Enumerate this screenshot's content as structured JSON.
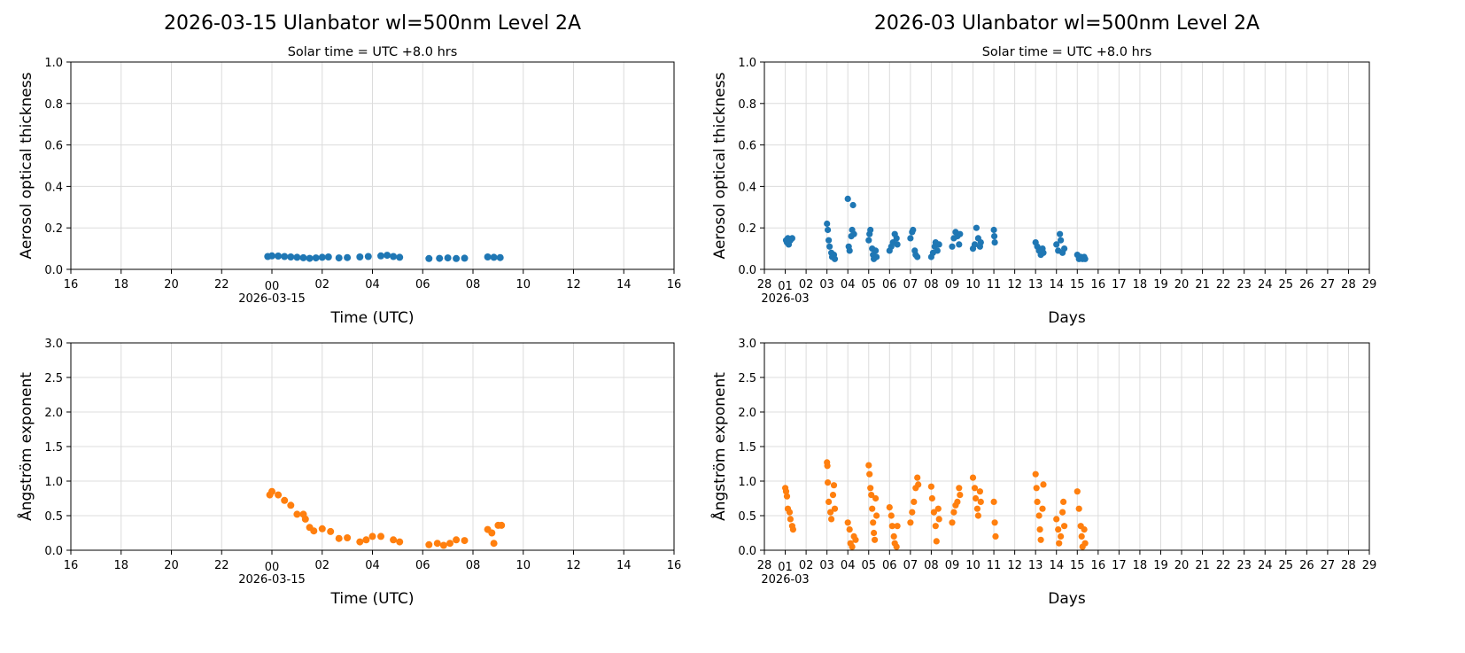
{
  "colors": {
    "aod": "#1f77b4",
    "angstrom": "#ff7f0e",
    "grid": "#dcdcdc"
  },
  "chart_data": [
    {
      "id": "daily-aod",
      "type": "scatter",
      "title": "2026-03-15  Ulanbator  wl=500nm  Level 2A",
      "subtitle": "Solar time = UTC +8.0 hrs",
      "xlabel": "Time (UTC)",
      "ylabel": "Aerosol optical thickness",
      "xlim": [
        "2026-03-14T16:00",
        "2026-03-15T16:00"
      ],
      "ylim": [
        0,
        1.0
      ],
      "xticks": [
        "16",
        "18",
        "20",
        "22",
        "00",
        "02",
        "04",
        "06",
        "08",
        "10",
        "12",
        "14",
        "16"
      ],
      "xtick_date": "2026-03-15",
      "yticks": [
        "0.0",
        "0.2",
        "0.4",
        "0.6",
        "0.8",
        "1.0"
      ],
      "grid": true,
      "color": "#1f77b4",
      "points": [
        [
          "2026-03-14T23:50",
          0.062
        ],
        [
          "2026-03-15T00:00",
          0.065
        ],
        [
          "2026-03-15T00:15",
          0.064
        ],
        [
          "2026-03-15T00:30",
          0.062
        ],
        [
          "2026-03-15T00:45",
          0.06
        ],
        [
          "2026-03-15T01:00",
          0.058
        ],
        [
          "2026-03-15T01:15",
          0.056
        ],
        [
          "2026-03-15T01:30",
          0.053
        ],
        [
          "2026-03-15T01:45",
          0.055
        ],
        [
          "2026-03-15T02:00",
          0.058
        ],
        [
          "2026-03-15T02:15",
          0.06
        ],
        [
          "2026-03-15T02:40",
          0.055
        ],
        [
          "2026-03-15T03:00",
          0.057
        ],
        [
          "2026-03-15T03:30",
          0.06
        ],
        [
          "2026-03-15T03:50",
          0.062
        ],
        [
          "2026-03-15T04:20",
          0.065
        ],
        [
          "2026-03-15T04:35",
          0.068
        ],
        [
          "2026-03-15T04:50",
          0.062
        ],
        [
          "2026-03-15T05:05",
          0.058
        ],
        [
          "2026-03-15T06:15",
          0.052
        ],
        [
          "2026-03-15T06:40",
          0.053
        ],
        [
          "2026-03-15T07:00",
          0.055
        ],
        [
          "2026-03-15T07:20",
          0.052
        ],
        [
          "2026-03-15T07:40",
          0.054
        ],
        [
          "2026-03-15T08:35",
          0.06
        ],
        [
          "2026-03-15T08:50",
          0.058
        ],
        [
          "2026-03-15T09:05",
          0.057
        ]
      ]
    },
    {
      "id": "monthly-aod",
      "type": "scatter",
      "title": "2026-03  Ulanbator  wl=500nm  Level 2A",
      "subtitle": "Solar time = UTC +8.0 hrs",
      "xlabel": "Days",
      "ylabel": "Aerosol optical thickness",
      "xlim": [
        "2026-02-28T00:00",
        "2026-03-29T00:00"
      ],
      "ylim": [
        0,
        1.0
      ],
      "xticks": [
        "28",
        "01",
        "02",
        "03",
        "04",
        "05",
        "06",
        "07",
        "08",
        "09",
        "10",
        "11",
        "12",
        "13",
        "14",
        "15",
        "16",
        "17",
        "18",
        "19",
        "20",
        "21",
        "22",
        "23",
        "24",
        "25",
        "26",
        "27",
        "28",
        "29"
      ],
      "xtick_date": "2026-03",
      "yticks": [
        "0.0",
        "0.2",
        "0.4",
        "0.6",
        "0.8",
        "1.0"
      ],
      "grid": true,
      "color": "#1f77b4",
      "points": [
        [
          "2026-03-01T01:00",
          0.14
        ],
        [
          "2026-03-01T02:00",
          0.13
        ],
        [
          "2026-03-01T03:00",
          0.15
        ],
        [
          "2026-03-01T04:00",
          0.12
        ],
        [
          "2026-03-01T06:00",
          0.14
        ],
        [
          "2026-03-01T08:00",
          0.15
        ],
        [
          "2026-03-03T00:00",
          0.22
        ],
        [
          "2026-03-03T01:00",
          0.19
        ],
        [
          "2026-03-03T02:00",
          0.14
        ],
        [
          "2026-03-03T03:00",
          0.11
        ],
        [
          "2026-03-03T05:00",
          0.08
        ],
        [
          "2026-03-03T06:00",
          0.06
        ],
        [
          "2026-03-03T08:00",
          0.07
        ],
        [
          "2026-03-03T09:00",
          0.05
        ],
        [
          "2026-03-04T00:00",
          0.34
        ],
        [
          "2026-03-04T01:00",
          0.11
        ],
        [
          "2026-03-04T02:00",
          0.09
        ],
        [
          "2026-03-04T04:00",
          0.16
        ],
        [
          "2026-03-04T05:00",
          0.19
        ],
        [
          "2026-03-04T06:00",
          0.31
        ],
        [
          "2026-03-04T07:00",
          0.17
        ],
        [
          "2026-03-05T00:00",
          0.14
        ],
        [
          "2026-03-05T01:00",
          0.17
        ],
        [
          "2026-03-05T02:00",
          0.19
        ],
        [
          "2026-03-05T04:00",
          0.1
        ],
        [
          "2026-03-05T05:00",
          0.07
        ],
        [
          "2026-03-05T06:00",
          0.05
        ],
        [
          "2026-03-05T08:00",
          0.09
        ],
        [
          "2026-03-05T09:00",
          0.06
        ],
        [
          "2026-03-06T00:00",
          0.09
        ],
        [
          "2026-03-06T02:00",
          0.11
        ],
        [
          "2026-03-06T04:00",
          0.13
        ],
        [
          "2026-03-06T06:00",
          0.17
        ],
        [
          "2026-03-06T08:00",
          0.15
        ],
        [
          "2026-03-06T09:00",
          0.12
        ],
        [
          "2026-03-07T00:00",
          0.15
        ],
        [
          "2026-03-07T02:00",
          0.18
        ],
        [
          "2026-03-07T03:00",
          0.19
        ],
        [
          "2026-03-07T05:00",
          0.09
        ],
        [
          "2026-03-07T06:00",
          0.07
        ],
        [
          "2026-03-07T08:00",
          0.06
        ],
        [
          "2026-03-08T00:00",
          0.06
        ],
        [
          "2026-03-08T02:00",
          0.08
        ],
        [
          "2026-03-08T04:00",
          0.11
        ],
        [
          "2026-03-08T05:00",
          0.13
        ],
        [
          "2026-03-08T07:00",
          0.09
        ],
        [
          "2026-03-08T09:00",
          0.12
        ],
        [
          "2026-03-09T00:00",
          0.11
        ],
        [
          "2026-03-09T02:00",
          0.15
        ],
        [
          "2026-03-09T04:00",
          0.18
        ],
        [
          "2026-03-09T06:00",
          0.16
        ],
        [
          "2026-03-09T08:00",
          0.12
        ],
        [
          "2026-03-09T09:00",
          0.17
        ],
        [
          "2026-03-10T00:00",
          0.1
        ],
        [
          "2026-03-10T02:00",
          0.12
        ],
        [
          "2026-03-10T04:00",
          0.2
        ],
        [
          "2026-03-10T06:00",
          0.15
        ],
        [
          "2026-03-10T08:00",
          0.11
        ],
        [
          "2026-03-10T09:00",
          0.13
        ],
        [
          "2026-03-11T00:00",
          0.19
        ],
        [
          "2026-03-11T00:30",
          0.16
        ],
        [
          "2026-03-11T01:00",
          0.13
        ],
        [
          "2026-03-13T00:00",
          0.13
        ],
        [
          "2026-03-13T02:00",
          0.11
        ],
        [
          "2026-03-13T04:00",
          0.09
        ],
        [
          "2026-03-13T06:00",
          0.07
        ],
        [
          "2026-03-13T08:00",
          0.1
        ],
        [
          "2026-03-13T09:00",
          0.08
        ],
        [
          "2026-03-14T00:00",
          0.12
        ],
        [
          "2026-03-14T02:00",
          0.09
        ],
        [
          "2026-03-14T04:00",
          0.17
        ],
        [
          "2026-03-14T05:00",
          0.14
        ],
        [
          "2026-03-14T07:00",
          0.08
        ],
        [
          "2026-03-14T09:00",
          0.1
        ],
        [
          "2026-03-15T00:00",
          0.07
        ],
        [
          "2026-03-15T02:00",
          0.05
        ],
        [
          "2026-03-15T04:00",
          0.06
        ],
        [
          "2026-03-15T06:00",
          0.05
        ],
        [
          "2026-03-15T08:00",
          0.06
        ],
        [
          "2026-03-15T09:00",
          0.05
        ]
      ]
    },
    {
      "id": "daily-angstrom",
      "type": "scatter",
      "xlabel": "Time (UTC)",
      "ylabel": "Ångström exponent",
      "xlim": [
        "2026-03-14T16:00",
        "2026-03-15T16:00"
      ],
      "ylim": [
        0,
        3.0
      ],
      "xticks": [
        "16",
        "18",
        "20",
        "22",
        "00",
        "02",
        "04",
        "06",
        "08",
        "10",
        "12",
        "14",
        "16"
      ],
      "xtick_date": "2026-03-15",
      "yticks": [
        "0.0",
        "0.5",
        "1.0",
        "1.5",
        "2.0",
        "2.5",
        "3.0"
      ],
      "grid": true,
      "color": "#ff7f0e",
      "points": [
        [
          "2026-03-14T23:55",
          0.8
        ],
        [
          "2026-03-15T00:00",
          0.85
        ],
        [
          "2026-03-15T00:15",
          0.8
        ],
        [
          "2026-03-15T00:30",
          0.72
        ],
        [
          "2026-03-15T00:45",
          0.65
        ],
        [
          "2026-03-15T01:00",
          0.52
        ],
        [
          "2026-03-15T01:15",
          0.52
        ],
        [
          "2026-03-15T01:20",
          0.45
        ],
        [
          "2026-03-15T01:30",
          0.33
        ],
        [
          "2026-03-15T01:40",
          0.28
        ],
        [
          "2026-03-15T02:00",
          0.31
        ],
        [
          "2026-03-15T02:20",
          0.27
        ],
        [
          "2026-03-15T02:40",
          0.17
        ],
        [
          "2026-03-15T03:00",
          0.18
        ],
        [
          "2026-03-15T03:30",
          0.12
        ],
        [
          "2026-03-15T03:45",
          0.15
        ],
        [
          "2026-03-15T04:00",
          0.2
        ],
        [
          "2026-03-15T04:20",
          0.2
        ],
        [
          "2026-03-15T04:50",
          0.15
        ],
        [
          "2026-03-15T05:05",
          0.12
        ],
        [
          "2026-03-15T06:15",
          0.08
        ],
        [
          "2026-03-15T06:35",
          0.1
        ],
        [
          "2026-03-15T06:50",
          0.07
        ],
        [
          "2026-03-15T07:05",
          0.1
        ],
        [
          "2026-03-15T07:20",
          0.15
        ],
        [
          "2026-03-15T07:40",
          0.14
        ],
        [
          "2026-03-15T08:35",
          0.3
        ],
        [
          "2026-03-15T08:45",
          0.25
        ],
        [
          "2026-03-15T08:50",
          0.1
        ],
        [
          "2026-03-15T09:00",
          0.36
        ],
        [
          "2026-03-15T09:08",
          0.36
        ]
      ]
    },
    {
      "id": "monthly-angstrom",
      "type": "scatter",
      "xlabel": "Days",
      "ylabel": "Ångström exponent",
      "xlim": [
        "2026-02-28T00:00",
        "2026-03-29T00:00"
      ],
      "ylim": [
        0,
        3.0
      ],
      "xticks": [
        "28",
        "01",
        "02",
        "03",
        "04",
        "05",
        "06",
        "07",
        "08",
        "09",
        "10",
        "11",
        "12",
        "13",
        "14",
        "15",
        "16",
        "17",
        "18",
        "19",
        "20",
        "21",
        "22",
        "23",
        "24",
        "25",
        "26",
        "27",
        "28",
        "29"
      ],
      "xtick_date": "2026-03",
      "yticks": [
        "0.0",
        "0.5",
        "1.0",
        "1.5",
        "2.0",
        "2.5",
        "3.0"
      ],
      "grid": true,
      "color": "#ff7f0e",
      "points": [
        [
          "2026-03-01T00:00",
          0.9
        ],
        [
          "2026-03-01T01:00",
          0.85
        ],
        [
          "2026-03-01T02:00",
          0.78
        ],
        [
          "2026-03-01T03:00",
          0.6
        ],
        [
          "2026-03-01T05:00",
          0.55
        ],
        [
          "2026-03-01T06:00",
          0.45
        ],
        [
          "2026-03-01T08:00",
          0.35
        ],
        [
          "2026-03-01T09:00",
          0.3
        ],
        [
          "2026-03-03T00:00",
          1.27
        ],
        [
          "2026-03-03T00:30",
          1.22
        ],
        [
          "2026-03-03T01:00",
          0.98
        ],
        [
          "2026-03-03T02:00",
          0.7
        ],
        [
          "2026-03-03T04:00",
          0.55
        ],
        [
          "2026-03-03T05:00",
          0.45
        ],
        [
          "2026-03-03T07:00",
          0.8
        ],
        [
          "2026-03-03T08:00",
          0.94
        ],
        [
          "2026-03-03T09:00",
          0.6
        ],
        [
          "2026-03-04T00:00",
          0.4
        ],
        [
          "2026-03-04T02:00",
          0.3
        ],
        [
          "2026-03-04T03:00",
          0.1
        ],
        [
          "2026-03-04T05:00",
          0.05
        ],
        [
          "2026-03-04T07:00",
          0.2
        ],
        [
          "2026-03-04T09:00",
          0.15
        ],
        [
          "2026-03-05T00:00",
          1.23
        ],
        [
          "2026-03-05T01:00",
          1.1
        ],
        [
          "2026-03-05T02:00",
          0.9
        ],
        [
          "2026-03-05T03:00",
          0.8
        ],
        [
          "2026-03-05T04:00",
          0.6
        ],
        [
          "2026-03-05T05:00",
          0.4
        ],
        [
          "2026-03-05T06:00",
          0.25
        ],
        [
          "2026-03-05T07:00",
          0.15
        ],
        [
          "2026-03-05T08:00",
          0.75
        ],
        [
          "2026-03-05T09:00",
          0.5
        ],
        [
          "2026-03-06T00:00",
          0.62
        ],
        [
          "2026-03-06T02:00",
          0.5
        ],
        [
          "2026-03-06T03:00",
          0.35
        ],
        [
          "2026-03-06T05:00",
          0.2
        ],
        [
          "2026-03-06T06:00",
          0.1
        ],
        [
          "2026-03-06T08:00",
          0.05
        ],
        [
          "2026-03-06T09:00",
          0.35
        ],
        [
          "2026-03-07T00:00",
          0.4
        ],
        [
          "2026-03-07T02:00",
          0.55
        ],
        [
          "2026-03-07T04:00",
          0.7
        ],
        [
          "2026-03-07T06:00",
          0.9
        ],
        [
          "2026-03-07T08:00",
          1.05
        ],
        [
          "2026-03-07T09:00",
          0.95
        ],
        [
          "2026-03-08T00:00",
          0.92
        ],
        [
          "2026-03-08T01:00",
          0.75
        ],
        [
          "2026-03-08T03:00",
          0.55
        ],
        [
          "2026-03-08T05:00",
          0.35
        ],
        [
          "2026-03-08T06:00",
          0.13
        ],
        [
          "2026-03-08T08:00",
          0.6
        ],
        [
          "2026-03-08T09:00",
          0.45
        ],
        [
          "2026-03-09T00:00",
          0.4
        ],
        [
          "2026-03-09T02:00",
          0.55
        ],
        [
          "2026-03-09T04:00",
          0.65
        ],
        [
          "2026-03-09T06:00",
          0.7
        ],
        [
          "2026-03-09T08:00",
          0.9
        ],
        [
          "2026-03-09T09:00",
          0.8
        ],
        [
          "2026-03-10T00:00",
          1.05
        ],
        [
          "2026-03-10T02:00",
          0.9
        ],
        [
          "2026-03-10T03:00",
          0.75
        ],
        [
          "2026-03-10T05:00",
          0.6
        ],
        [
          "2026-03-10T06:00",
          0.5
        ],
        [
          "2026-03-10T08:00",
          0.85
        ],
        [
          "2026-03-10T09:00",
          0.7
        ],
        [
          "2026-03-11T00:00",
          0.7
        ],
        [
          "2026-03-11T01:00",
          0.4
        ],
        [
          "2026-03-11T02:00",
          0.2
        ],
        [
          "2026-03-13T00:00",
          1.1
        ],
        [
          "2026-03-13T01:00",
          0.9
        ],
        [
          "2026-03-13T02:00",
          0.7
        ],
        [
          "2026-03-13T04:00",
          0.5
        ],
        [
          "2026-03-13T05:00",
          0.3
        ],
        [
          "2026-03-13T06:00",
          0.15
        ],
        [
          "2026-03-13T08:00",
          0.6
        ],
        [
          "2026-03-13T09:00",
          0.95
        ],
        [
          "2026-03-14T00:00",
          0.45
        ],
        [
          "2026-03-14T02:00",
          0.3
        ],
        [
          "2026-03-14T03:00",
          0.1
        ],
        [
          "2026-03-14T05:00",
          0.2
        ],
        [
          "2026-03-14T07:00",
          0.55
        ],
        [
          "2026-03-14T08:00",
          0.7
        ],
        [
          "2026-03-14T09:00",
          0.35
        ],
        [
          "2026-03-15T00:00",
          0.85
        ],
        [
          "2026-03-15T02:00",
          0.6
        ],
        [
          "2026-03-15T04:00",
          0.35
        ],
        [
          "2026-03-15T05:00",
          0.2
        ],
        [
          "2026-03-15T06:00",
          0.05
        ],
        [
          "2026-03-15T08:00",
          0.3
        ],
        [
          "2026-03-15T09:00",
          0.1
        ]
      ]
    }
  ]
}
